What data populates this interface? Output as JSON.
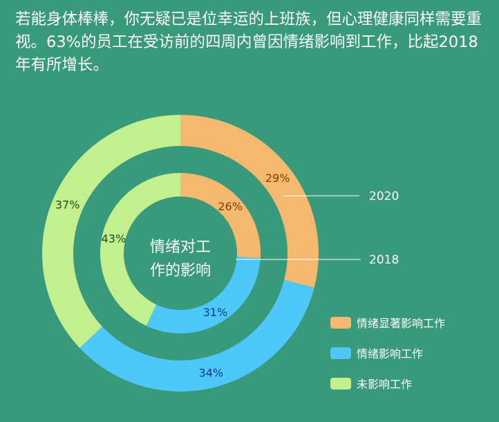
{
  "intro_text": "若能身体棒棒，你无疑已是位幸运的上班族，但心理健康同样需要重视。63%的员工在受访前的四周内曾因情绪影响到工作，比起2018年有所增长。",
  "center_label": [
    "情绪对工",
    "作的影响"
  ],
  "chart_data": {
    "type": "donut",
    "categories": [
      "情绪显著影响工作",
      "情绪影响工作",
      "未影响工作"
    ],
    "colors": [
      "#f4b86e",
      "#4dc8f8",
      "#c3f08f"
    ],
    "rings": [
      {
        "name": "2020",
        "values": [
          29,
          34,
          37
        ],
        "labels": [
          "29%",
          "34%",
          "37%"
        ]
      },
      {
        "name": "2018",
        "values": [
          26,
          31,
          43
        ],
        "labels": [
          "26%",
          "31%",
          "43%"
        ]
      }
    ],
    "legend_position": "bottom-right"
  }
}
